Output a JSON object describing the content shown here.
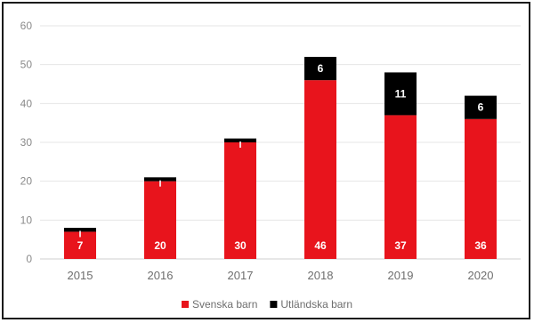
{
  "chart_data": {
    "type": "bar",
    "stacked": true,
    "categories": [
      "2015",
      "2016",
      "2017",
      "2018",
      "2019",
      "2020"
    ],
    "series": [
      {
        "name": "Svenska barn",
        "color": "#e8141c",
        "values": [
          7,
          20,
          30,
          46,
          37,
          36
        ]
      },
      {
        "name": "Utländska barn",
        "color": "#000000",
        "values": [
          1,
          1,
          1,
          6,
          11,
          6
        ]
      }
    ],
    "data_labels": {
      "Svenska barn": [
        "7",
        "20",
        "30",
        "46",
        "37",
        "36"
      ],
      "Utländska barn": [
        "",
        "",
        "",
        "6",
        "11",
        "6"
      ]
    },
    "y_ticks": [
      0,
      10,
      20,
      30,
      40,
      50,
      60
    ],
    "ylim": [
      0,
      60
    ],
    "grid": true,
    "legend_position": "bottom"
  }
}
